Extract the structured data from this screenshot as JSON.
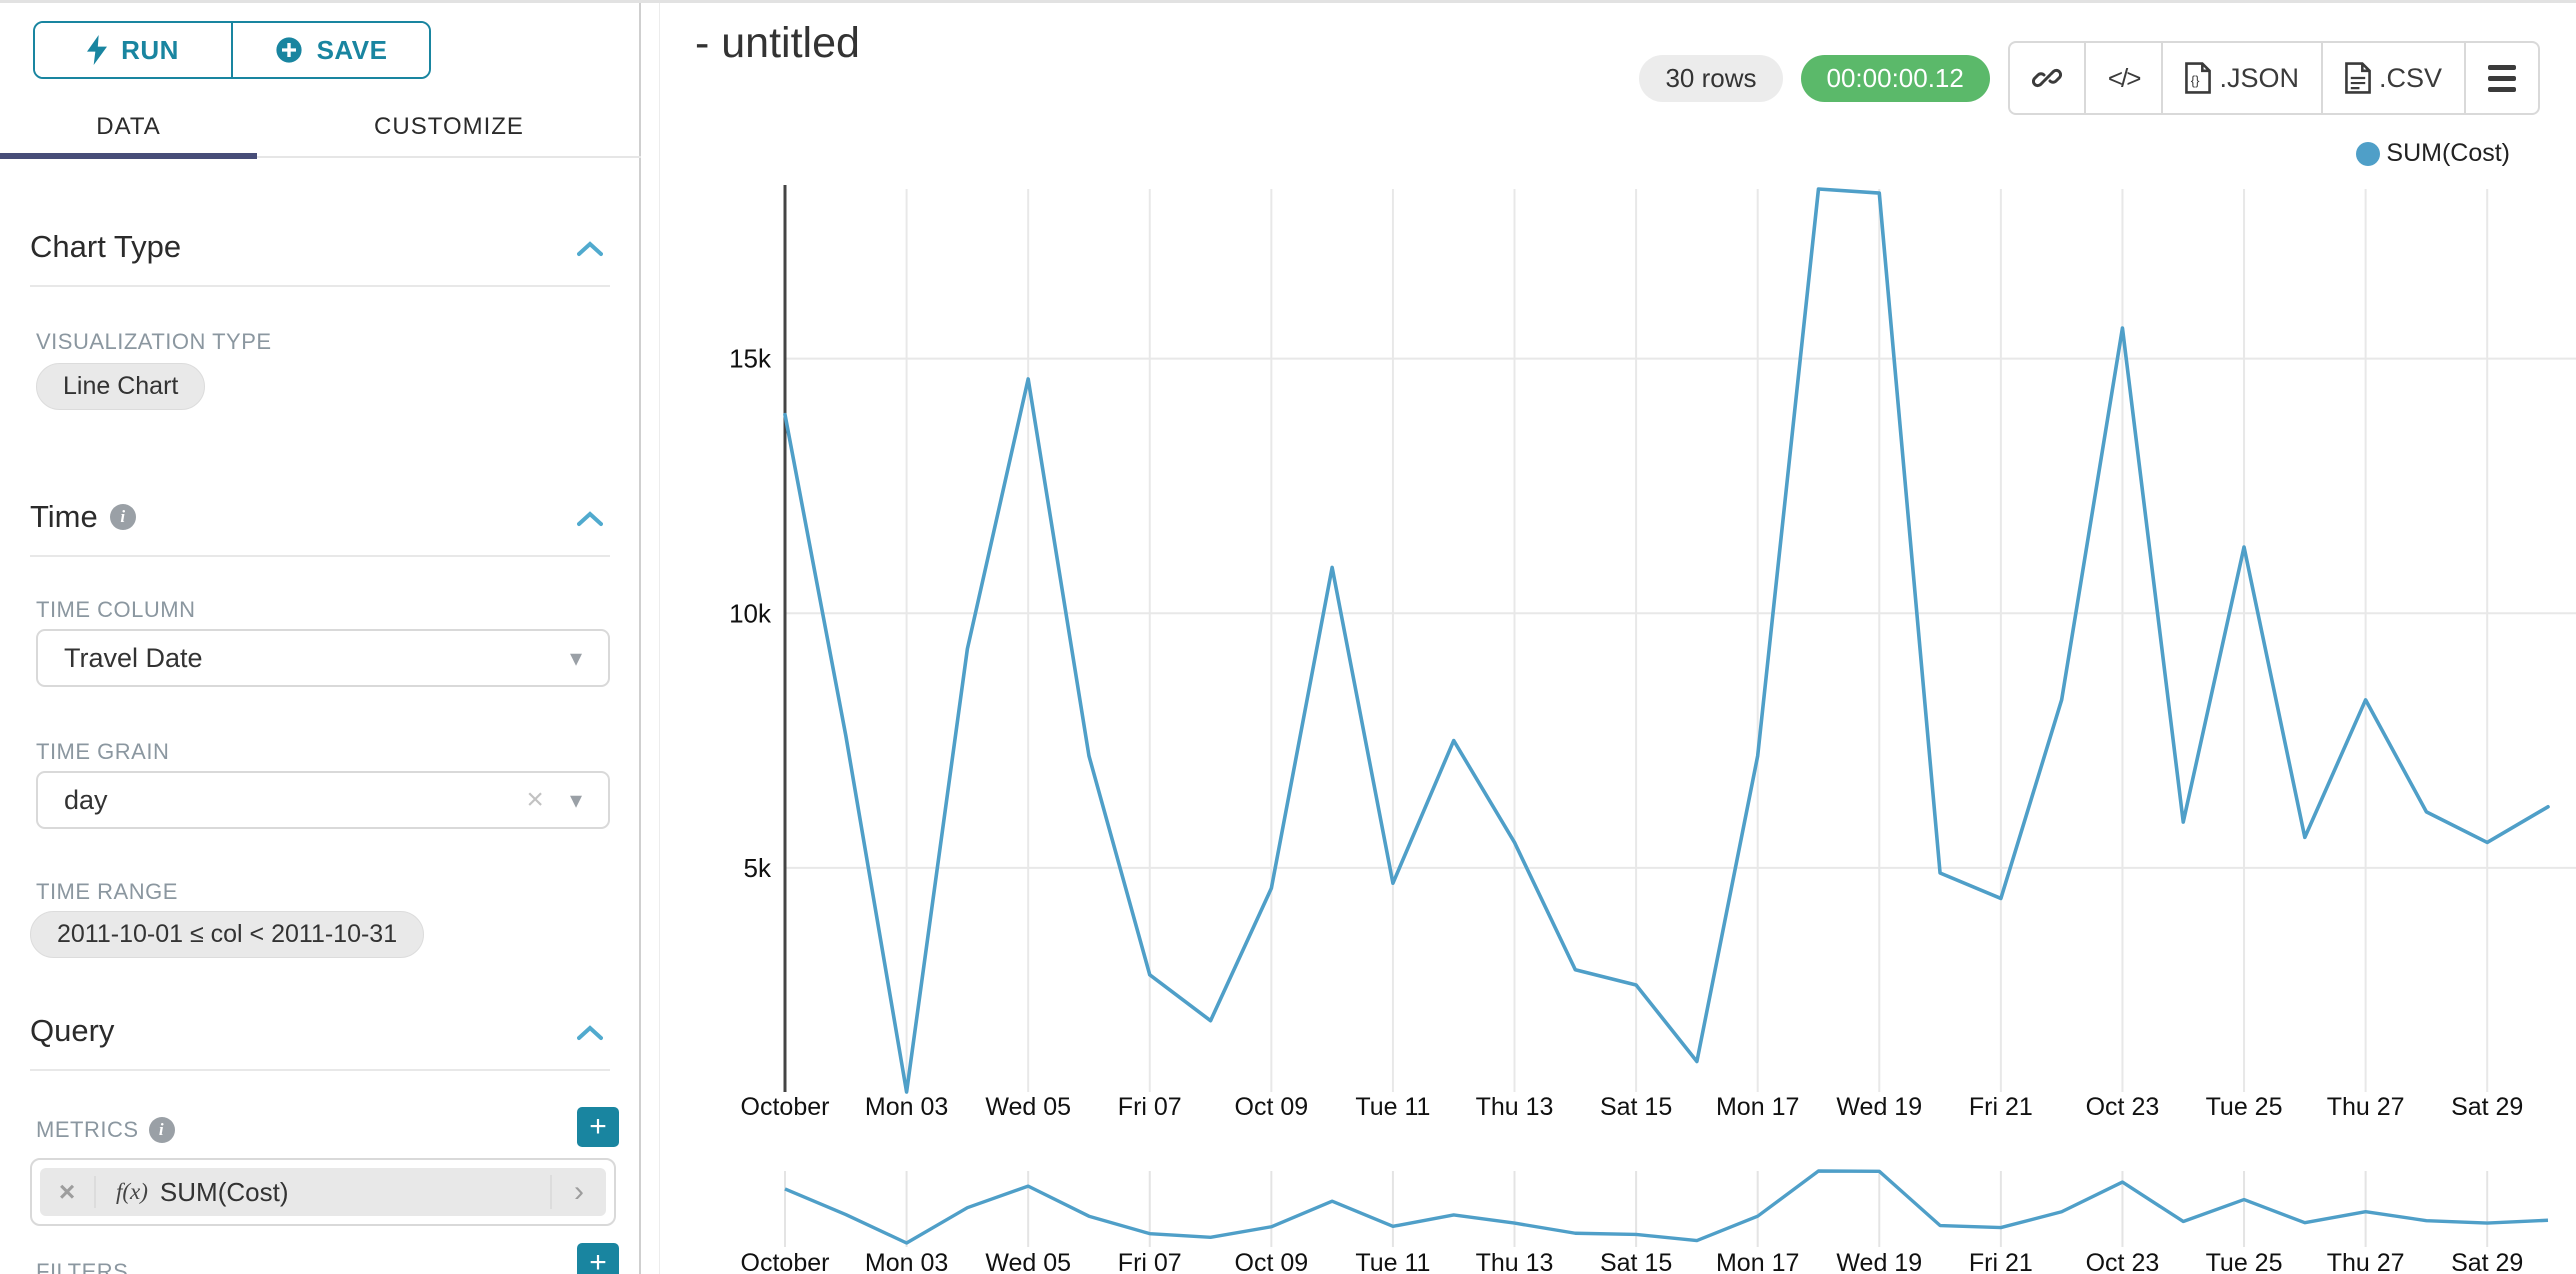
{
  "colors": {
    "accent_teal": "#1985a0",
    "timer_green": "#5bb96a",
    "series_blue": "#4f9fc8",
    "tab_underline": "#474d78",
    "gridline": "#e8e8e8",
    "axis": "#444444"
  },
  "panel": {
    "run_label": "RUN",
    "save_label": "SAVE",
    "tabs": {
      "data": "DATA",
      "customize": "CUSTOMIZE"
    },
    "chart_type": {
      "title": "Chart Type",
      "viz_label": "VISUALIZATION TYPE",
      "viz_value": "Line Chart"
    },
    "time": {
      "title": "Time",
      "column_label": "TIME COLUMN",
      "column_value": "Travel Date",
      "grain_label": "TIME GRAIN",
      "grain_value": "day",
      "range_label": "TIME RANGE",
      "range_value": "2011-10-01 ≤ col < 2011-10-31"
    },
    "query": {
      "title": "Query",
      "metrics_label": "METRICS",
      "metric_fx": "f(x)",
      "metric_value": "SUM(Cost)",
      "filters_label": "FILTERS"
    }
  },
  "icons": {
    "caret_down": "▾",
    "close": "×",
    "chevron_right": "›",
    "plus": "+",
    "info": "i",
    "code": "</>"
  },
  "header": {
    "title": "- untitled",
    "rows_badge": "30 rows",
    "timer": "00:00:00.12",
    "json_label": ".JSON",
    "csv_label": ".CSV"
  },
  "chart_data": {
    "type": "line",
    "title": "",
    "xlabel": "",
    "ylabel": "",
    "legend": [
      "SUM(Cost)"
    ],
    "legend_position": "top-right",
    "grid": true,
    "x": [
      1,
      2,
      3,
      4,
      5,
      6,
      7,
      8,
      9,
      10,
      11,
      12,
      13,
      14,
      15,
      16,
      17,
      18,
      19,
      20,
      21,
      22,
      23,
      24,
      25,
      26,
      27,
      28,
      29,
      30
    ],
    "x_unit": "day of October 2011",
    "series": [
      {
        "name": "SUM(Cost)",
        "color": "#4f9fc8",
        "values": [
          13900,
          7600,
          600,
          9300,
          14600,
          7200,
          2900,
          2000,
          4600,
          10900,
          4700,
          7500,
          5500,
          3000,
          2700,
          1200,
          7200,
          18330,
          18250,
          4900,
          4400,
          8300,
          15600,
          5900,
          11300,
          5600,
          8300,
          6100,
          5500,
          6200
        ]
      }
    ],
    "ylim": [
      600,
      18330
    ],
    "y_ticks": [
      {
        "value": 5000,
        "label": "5k"
      },
      {
        "value": 10000,
        "label": "10k"
      },
      {
        "value": 15000,
        "label": "15k"
      }
    ],
    "x_tick_days": [
      1,
      3,
      5,
      7,
      9,
      11,
      13,
      15,
      17,
      19,
      21,
      23,
      25,
      27,
      29
    ],
    "x_tick_labels": [
      "October",
      "Mon 03",
      "Wed 05",
      "Fri 07",
      "Oct 09",
      "Tue 11",
      "Thu 13",
      "Sat 15",
      "Mon 17",
      "Wed 19",
      "Fri 21",
      "Oct 23",
      "Tue 25",
      "Thu 27",
      "Sat 29"
    ],
    "context_chart": {
      "present": true,
      "same_series": true
    }
  }
}
